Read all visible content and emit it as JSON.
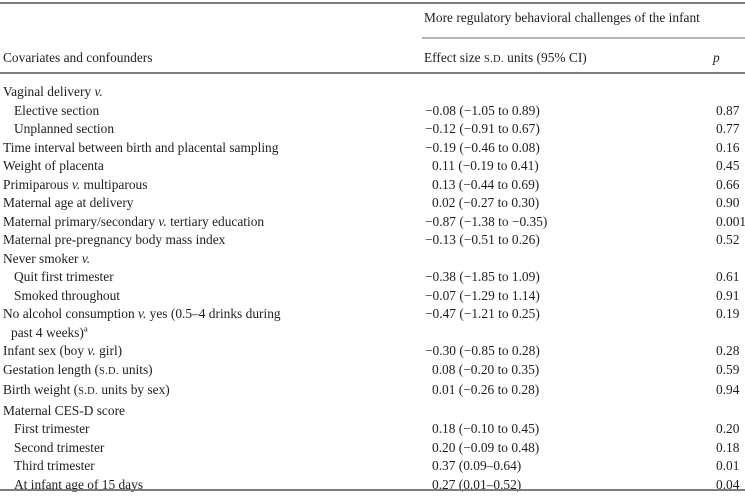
{
  "table": {
    "spanner": "More regulatory behavioral challenges of the infant",
    "col_headers": {
      "covariates": "Covariates and confounders",
      "effect": [
        {
          "text": "Effect size "
        },
        {
          "text": "S.D.",
          "smallcaps": true
        },
        {
          "text": " units (95% CI)"
        }
      ],
      "p": "p"
    },
    "rows": [
      {
        "label": [
          {
            "text": "Vaginal delivery "
          },
          {
            "text": "v.",
            "italic": true
          }
        ],
        "indent": 0,
        "effect": "",
        "p": ""
      },
      {
        "label": [
          {
            "text": "Elective section"
          }
        ],
        "indent": 1,
        "effect": "−0.08 (−1.05 to 0.89)",
        "p": "0.87"
      },
      {
        "label": [
          {
            "text": "Unplanned section"
          }
        ],
        "indent": 1,
        "effect": "−0.12 (−0.91 to 0.67)",
        "p": "0.77"
      },
      {
        "label": [
          {
            "text": "Time interval between birth and placental sampling"
          }
        ],
        "indent": 0,
        "effect": "−0.19 (−0.46 to 0.08)",
        "p": "0.16"
      },
      {
        "label": [
          {
            "text": "Weight of placenta"
          }
        ],
        "indent": 0,
        "effect": "0.11 (−0.19 to 0.41)",
        "p": "0.45"
      },
      {
        "label": [
          {
            "text": "Primiparous "
          },
          {
            "text": "v.",
            "italic": true
          },
          {
            "text": " multiparous"
          }
        ],
        "indent": 0,
        "effect": "0.13 (−0.44 to 0.69)",
        "p": "0.66"
      },
      {
        "label": [
          {
            "text": "Maternal age at delivery"
          }
        ],
        "indent": 0,
        "effect": "0.02 (−0.27 to 0.30)",
        "p": "0.90"
      },
      {
        "label": [
          {
            "text": "Maternal primary/secondary "
          },
          {
            "text": "v.",
            "italic": true
          },
          {
            "text": " tertiary education"
          }
        ],
        "indent": 0,
        "effect": "−0.87 (−1.38 to −0.35)",
        "p": "0.001"
      },
      {
        "label": [
          {
            "text": "Maternal pre-pregnancy body mass index"
          }
        ],
        "indent": 0,
        "effect": "−0.13 (−0.51 to 0.26)",
        "p": "0.52"
      },
      {
        "label": [
          {
            "text": "Never smoker "
          },
          {
            "text": "v.",
            "italic": true
          }
        ],
        "indent": 0,
        "effect": "",
        "p": ""
      },
      {
        "label": [
          {
            "text": "Quit first trimester"
          }
        ],
        "indent": 1,
        "effect": "−0.38 (−1.85 to 1.09)",
        "p": "0.61"
      },
      {
        "label": [
          {
            "text": "Smoked throughout"
          }
        ],
        "indent": 1,
        "effect": "−0.07 (−1.29 to 1.14)",
        "p": "0.91"
      },
      {
        "label": [
          {
            "text": "No alcohol consumption "
          },
          {
            "text": "v.",
            "italic": true
          },
          {
            "text": " yes (0.5–4 drinks during"
          },
          {
            "break": true
          },
          {
            "text": "past 4 weeks)",
            "pad": true
          },
          {
            "text": "a",
            "sup": true
          }
        ],
        "indent": 0,
        "effect": "−0.47 (−1.21 to 0.25)",
        "p": "0.19"
      },
      {
        "label": [
          {
            "text": "Infant sex (boy "
          },
          {
            "text": "v.",
            "italic": true
          },
          {
            "text": " girl)"
          }
        ],
        "indent": 0,
        "effect": "−0.30 (−0.85 to 0.28)",
        "p": "0.28"
      },
      {
        "label": [
          {
            "text": "Gestation length ("
          },
          {
            "text": "S.D.",
            "smallcaps": true
          },
          {
            "text": " units)"
          }
        ],
        "indent": 0,
        "effect": "0.08 (−0.20 to 0.35)",
        "p": "0.59"
      },
      {
        "label": [
          {
            "text": "Birth weight ("
          },
          {
            "text": "S.D.",
            "smallcaps": true
          },
          {
            "text": " units by sex)"
          }
        ],
        "indent": 0,
        "effect": "0.01 (−0.26 to 0.28)",
        "p": "0.94"
      },
      {
        "label": [
          {
            "text": "Maternal CES-D score"
          }
        ],
        "indent": 0,
        "effect": "",
        "p": ""
      },
      {
        "label": [
          {
            "text": "First trimester"
          }
        ],
        "indent": 1,
        "effect": "0.18 (−0.10 to 0.45)",
        "p": "0.20"
      },
      {
        "label": [
          {
            "text": "Second trimester"
          }
        ],
        "indent": 1,
        "effect": "0.20 (−0.09 to 0.48)",
        "p": "0.18"
      },
      {
        "label": [
          {
            "text": "Third trimester"
          }
        ],
        "indent": 1,
        "effect": "0.37 (0.09–0.64)",
        "p": "0.01"
      },
      {
        "label": [
          {
            "text": "At infant age of 15 days"
          }
        ],
        "indent": 1,
        "effect": "0.27 (0.01–0.52)",
        "p": "0.04"
      }
    ]
  }
}
